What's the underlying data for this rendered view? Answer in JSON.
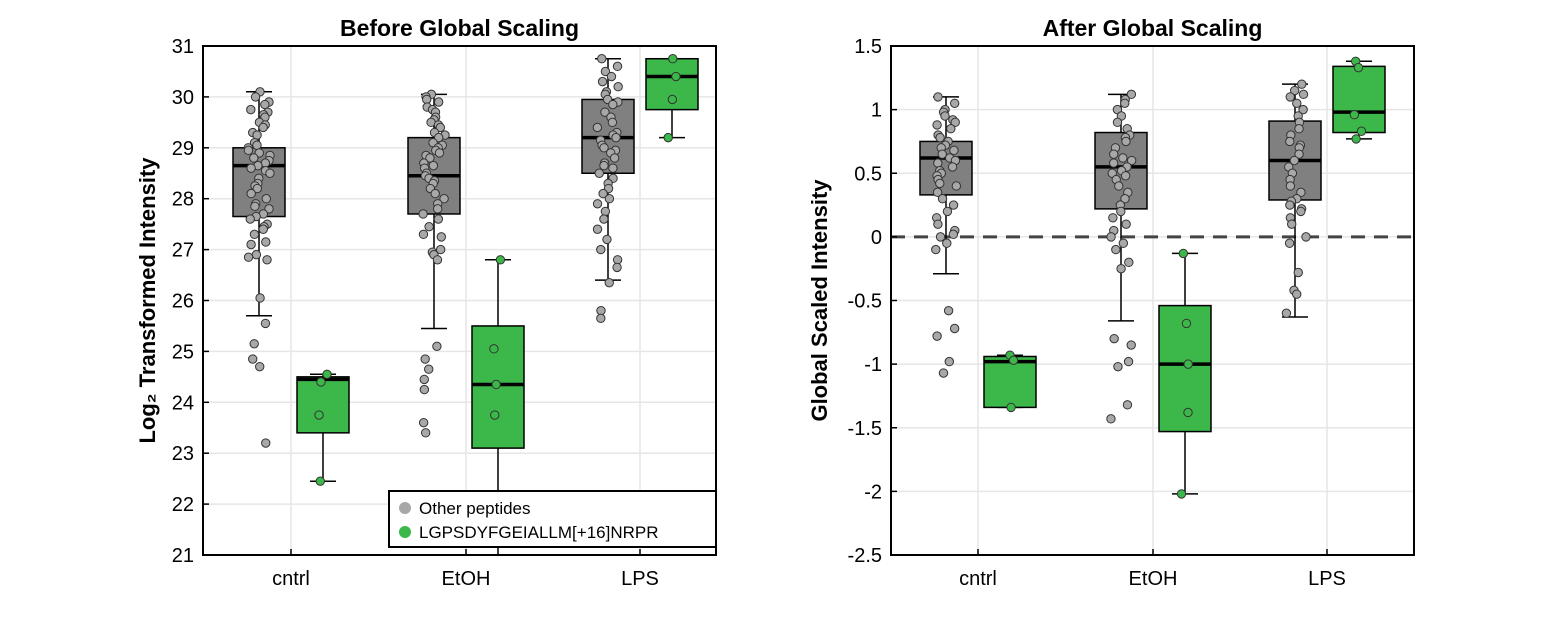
{
  "chart_data": [
    {
      "type": "box",
      "title": "Before Global Scaling",
      "ylabel": "Log₂ Transformed Intensity",
      "categories": [
        "cntrl",
        "EtOH",
        "LPS"
      ],
      "ylim": [
        21,
        31
      ],
      "yticks": [
        21,
        22,
        23,
        24,
        25,
        26,
        27,
        28,
        29,
        30,
        31
      ],
      "grid": true,
      "legend": {
        "placement": "bottom-right",
        "entries": [
          {
            "label": "Other peptides",
            "color": "#a8a8a8"
          },
          {
            "label": "LGPSDYFGEIALLM[+16]NRPR",
            "color": "#3cb84a"
          }
        ]
      },
      "series": [
        {
          "key": "other",
          "color": "#808080",
          "marker_color": "#a8a8a8",
          "boxes": [
            {
              "category": "cntrl",
              "whisker_low": 25.7,
              "q1": 27.65,
              "median": 28.65,
              "q3": 29.0,
              "whisker_high": 30.1,
              "points": [
                30.1,
                30.0,
                29.9,
                29.85,
                29.75,
                29.7,
                29.65,
                29.6,
                29.5,
                29.45,
                29.4,
                29.3,
                29.25,
                29.1,
                29.05,
                29.0,
                28.95,
                28.9,
                28.85,
                28.8,
                28.75,
                28.7,
                28.65,
                28.6,
                28.55,
                28.5,
                28.4,
                28.3,
                28.25,
                28.2,
                28.1,
                28.0,
                27.9,
                27.85,
                27.8,
                27.7,
                27.65,
                27.6,
                27.5,
                27.45,
                27.4,
                27.3,
                27.15,
                27.1,
                26.9,
                26.85,
                26.8,
                26.05,
                25.55,
                25.15,
                24.85,
                24.7,
                23.2
              ]
            },
            {
              "category": "EtOH",
              "whisker_low": 25.45,
              "q1": 27.7,
              "median": 28.45,
              "q3": 29.2,
              "whisker_high": 30.05,
              "points": [
                30.05,
                30.0,
                29.95,
                29.9,
                29.8,
                29.75,
                29.7,
                29.6,
                29.55,
                29.5,
                29.45,
                29.4,
                29.3,
                29.25,
                29.2,
                29.1,
                29.05,
                29.0,
                28.95,
                28.9,
                28.85,
                28.8,
                28.7,
                28.65,
                28.6,
                28.5,
                28.45,
                28.4,
                28.35,
                28.3,
                28.2,
                28.1,
                28.0,
                27.9,
                27.8,
                27.7,
                27.6,
                27.45,
                27.3,
                27.25,
                27.0,
                26.95,
                26.9,
                26.8,
                25.1,
                24.85,
                24.65,
                24.45,
                24.25,
                23.6,
                23.4
              ]
            },
            {
              "category": "LPS",
              "whisker_low": 26.4,
              "q1": 28.5,
              "median": 29.2,
              "q3": 29.95,
              "whisker_high": 30.75,
              "points": [
                30.75,
                30.6,
                30.5,
                30.4,
                30.3,
                30.2,
                30.1,
                30.05,
                29.95,
                29.9,
                29.85,
                29.7,
                29.6,
                29.5,
                29.4,
                29.3,
                29.25,
                29.2,
                29.15,
                29.05,
                29.0,
                28.95,
                28.9,
                28.8,
                28.7,
                28.65,
                28.6,
                28.5,
                28.4,
                28.3,
                28.2,
                28.1,
                28.0,
                27.9,
                27.75,
                27.6,
                27.4,
                27.2,
                27.0,
                26.8,
                26.65,
                26.35,
                25.8,
                25.65
              ]
            }
          ]
        },
        {
          "key": "target",
          "color": "#3cb84a",
          "marker_color": "#3cb84a",
          "boxes": [
            {
              "category": "cntrl",
              "whisker_low": 22.45,
              "q1": 23.4,
              "median": 24.45,
              "q3": 24.5,
              "whisker_high": 24.55,
              "points": [
                24.55,
                24.4,
                23.75,
                22.45
              ]
            },
            {
              "category": "EtOH",
              "whisker_low": 21.0,
              "q1": 23.1,
              "median": 24.35,
              "q3": 25.5,
              "whisker_high": 26.8,
              "points": [
                26.8,
                25.05,
                24.35,
                23.75
              ]
            },
            {
              "category": "LPS",
              "whisker_low": 29.2,
              "q1": 29.75,
              "median": 30.4,
              "q3": 30.75,
              "whisker_high": 30.75,
              "points": [
                30.75,
                30.4,
                29.95,
                29.2
              ]
            }
          ]
        }
      ]
    },
    {
      "type": "box",
      "title": "After Global Scaling",
      "ylabel": "Global Scaled Intensity",
      "categories": [
        "cntrl",
        "EtOH",
        "LPS"
      ],
      "ylim": [
        -2.5,
        1.5
      ],
      "yticks": [
        -2.5,
        -2,
        -1.5,
        -1,
        -0.5,
        0,
        0.5,
        1,
        1.5
      ],
      "grid": true,
      "reference_line": 0,
      "series": [
        {
          "key": "other",
          "color": "#808080",
          "marker_color": "#a8a8a8",
          "boxes": [
            {
              "category": "cntrl",
              "whisker_low": -0.29,
              "q1": 0.33,
              "median": 0.62,
              "q3": 0.75,
              "whisker_high": 1.1,
              "points": [
                1.1,
                1.05,
                1.0,
                0.98,
                0.95,
                0.92,
                0.9,
                0.88,
                0.85,
                0.8,
                0.78,
                0.75,
                0.72,
                0.7,
                0.68,
                0.65,
                0.62,
                0.6,
                0.58,
                0.55,
                0.52,
                0.5,
                0.48,
                0.45,
                0.42,
                0.4,
                0.35,
                0.3,
                0.25,
                0.2,
                0.15,
                0.1,
                0.05,
                0.02,
                0.0,
                -0.05,
                -0.1,
                -0.58,
                -0.72,
                -0.78,
                -0.98,
                -1.07
              ]
            },
            {
              "category": "EtOH",
              "whisker_low": -0.66,
              "q1": 0.22,
              "median": 0.55,
              "q3": 0.82,
              "whisker_high": 1.12,
              "points": [
                1.12,
                1.08,
                1.05,
                1.0,
                0.95,
                0.9,
                0.85,
                0.8,
                0.78,
                0.75,
                0.7,
                0.65,
                0.62,
                0.6,
                0.58,
                0.55,
                0.52,
                0.5,
                0.48,
                0.45,
                0.4,
                0.35,
                0.3,
                0.25,
                0.2,
                0.15,
                0.1,
                0.05,
                0.0,
                -0.05,
                -0.1,
                -0.2,
                -0.25,
                -0.8,
                -0.85,
                -0.98,
                -1.02,
                -1.32,
                -1.43
              ]
            },
            {
              "category": "LPS",
              "whisker_low": -0.63,
              "q1": 0.29,
              "median": 0.6,
              "q3": 0.91,
              "whisker_high": 1.2,
              "points": [
                1.2,
                1.15,
                1.12,
                1.1,
                1.05,
                1.0,
                0.95,
                0.9,
                0.85,
                0.8,
                0.75,
                0.72,
                0.7,
                0.65,
                0.6,
                0.55,
                0.5,
                0.45,
                0.4,
                0.35,
                0.3,
                0.28,
                0.25,
                0.22,
                0.2,
                0.15,
                0.1,
                0.0,
                -0.05,
                -0.28,
                -0.42,
                -0.45,
                -0.6
              ]
            }
          ]
        },
        {
          "key": "target",
          "color": "#3cb84a",
          "marker_color": "#3cb84a",
          "boxes": [
            {
              "category": "cntrl",
              "whisker_low": -1.34,
              "q1": -1.34,
              "median": -0.98,
              "q3": -0.94,
              "whisker_high": -0.93,
              "points": [
                -0.93,
                -0.97,
                -1.34
              ]
            },
            {
              "category": "EtOH",
              "whisker_low": -2.02,
              "q1": -1.53,
              "median": -1.0,
              "q3": -0.54,
              "whisker_high": -0.13,
              "points": [
                -0.13,
                -0.68,
                -1.0,
                -1.38,
                -2.02
              ]
            },
            {
              "category": "LPS",
              "whisker_low": 0.77,
              "q1": 0.82,
              "median": 0.98,
              "q3": 1.34,
              "whisker_high": 1.38,
              "points": [
                1.38,
                1.33,
                0.96,
                0.83,
                0.77
              ]
            }
          ]
        }
      ]
    }
  ]
}
